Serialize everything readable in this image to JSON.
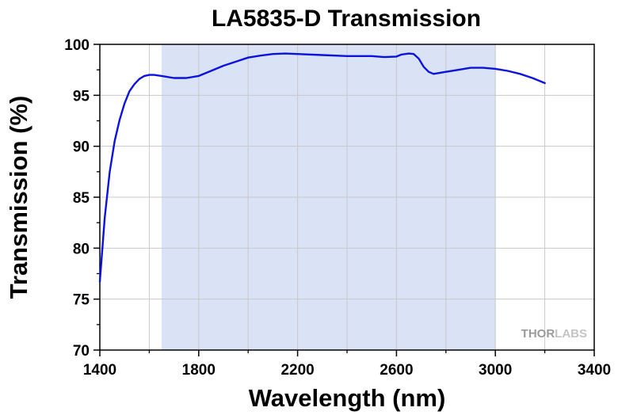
{
  "chart_data": {
    "type": "line",
    "title": "LA5835-D Transmission",
    "xlabel": "Wavelength (nm)",
    "ylabel": "Transmission (%)",
    "xlim": [
      1400,
      3400
    ],
    "ylim": [
      70,
      100
    ],
    "x_ticks": [
      1400,
      1800,
      2200,
      2600,
      3000,
      3400
    ],
    "y_ticks": [
      70,
      75,
      80,
      85,
      90,
      95,
      100
    ],
    "grid": true,
    "shaded_band": {
      "x_start": 1650,
      "x_end": 3000,
      "color": "#dae3f5"
    },
    "line_color": "#0b12e0",
    "series": [
      {
        "x": [
          1400,
          1420,
          1440,
          1460,
          1480,
          1500,
          1520,
          1540,
          1560,
          1580,
          1600,
          1620,
          1650,
          1700,
          1750,
          1800,
          1850,
          1900,
          1950,
          2000,
          2050,
          2100,
          2150,
          2200,
          2300,
          2400,
          2500,
          2550,
          2600,
          2620,
          2650,
          2670,
          2690,
          2710,
          2730,
          2750,
          2800,
          2850,
          2900,
          2950,
          3000,
          3050,
          3100,
          3150,
          3200
        ],
        "y": [
          76.7,
          83.0,
          87.5,
          90.5,
          92.6,
          94.2,
          95.4,
          96.1,
          96.6,
          96.9,
          97.0,
          97.0,
          96.9,
          96.7,
          96.7,
          96.9,
          97.4,
          97.9,
          98.3,
          98.7,
          98.9,
          99.05,
          99.1,
          99.05,
          98.95,
          98.85,
          98.85,
          98.75,
          98.8,
          99.0,
          99.1,
          99.05,
          98.6,
          97.8,
          97.3,
          97.1,
          97.3,
          97.5,
          97.7,
          97.7,
          97.6,
          97.4,
          97.1,
          96.7,
          96.2
        ]
      }
    ]
  },
  "watermark": {
    "part1": "THOR",
    "part2": "LABS"
  }
}
